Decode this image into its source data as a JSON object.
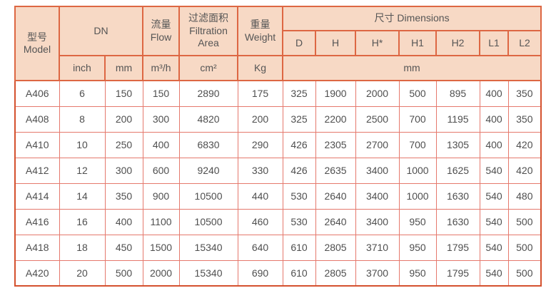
{
  "colors": {
    "header_bg": "#f7d9c5",
    "outer_border": "#d4512e",
    "header_border": "#dd6743",
    "data_border": "#e5796d",
    "text": "#4f4f4f"
  },
  "table": {
    "header": {
      "model_zh": "型号",
      "model_en": "Model",
      "dn": "DN",
      "flow_zh": "流量",
      "flow_en": "Flow",
      "filtration_zh": "过滤面积",
      "filtration_en1": "Filtration",
      "filtration_en2": "Area",
      "weight_zh": "重量",
      "weight_en": "Weight",
      "dimensions": "尺寸 Dimensions",
      "dim_cols": [
        "D",
        "H",
        "H*",
        "H1",
        "H2",
        "L1",
        "L2"
      ],
      "units": {
        "inch": "inch",
        "mm": "mm",
        "flow": "m³/h",
        "area": "cm²",
        "weight": "Kg",
        "dims": "mm"
      }
    },
    "rows": [
      {
        "model": "A406",
        "values": [
          "6",
          "150",
          "150",
          "2890",
          "175",
          "325",
          "1900",
          "2000",
          "500",
          "895",
          "400",
          "350"
        ]
      },
      {
        "model": "A408",
        "values": [
          "8",
          "200",
          "300",
          "4820",
          "200",
          "325",
          "2200",
          "2500",
          "700",
          "1195",
          "400",
          "350"
        ]
      },
      {
        "model": "A410",
        "values": [
          "10",
          "250",
          "400",
          "6830",
          "290",
          "426",
          "2305",
          "2700",
          "700",
          "1305",
          "400",
          "420"
        ]
      },
      {
        "model": "A412",
        "values": [
          "12",
          "300",
          "600",
          "9240",
          "330",
          "426",
          "2635",
          "3400",
          "1000",
          "1625",
          "540",
          "420"
        ]
      },
      {
        "model": "A414",
        "values": [
          "14",
          "350",
          "900",
          "10500",
          "440",
          "530",
          "2640",
          "3400",
          "1000",
          "1630",
          "540",
          "480"
        ]
      },
      {
        "model": "A416",
        "values": [
          "16",
          "400",
          "1100",
          "10500",
          "460",
          "530",
          "2640",
          "3400",
          "950",
          "1630",
          "540",
          "500"
        ]
      },
      {
        "model": "A418",
        "values": [
          "18",
          "450",
          "1500",
          "15340",
          "640",
          "610",
          "2805",
          "3710",
          "950",
          "1795",
          "540",
          "500"
        ]
      },
      {
        "model": "A420",
        "values": [
          "20",
          "500",
          "2000",
          "15340",
          "690",
          "610",
          "2805",
          "3700",
          "950",
          "1795",
          "540",
          "500"
        ]
      }
    ]
  }
}
